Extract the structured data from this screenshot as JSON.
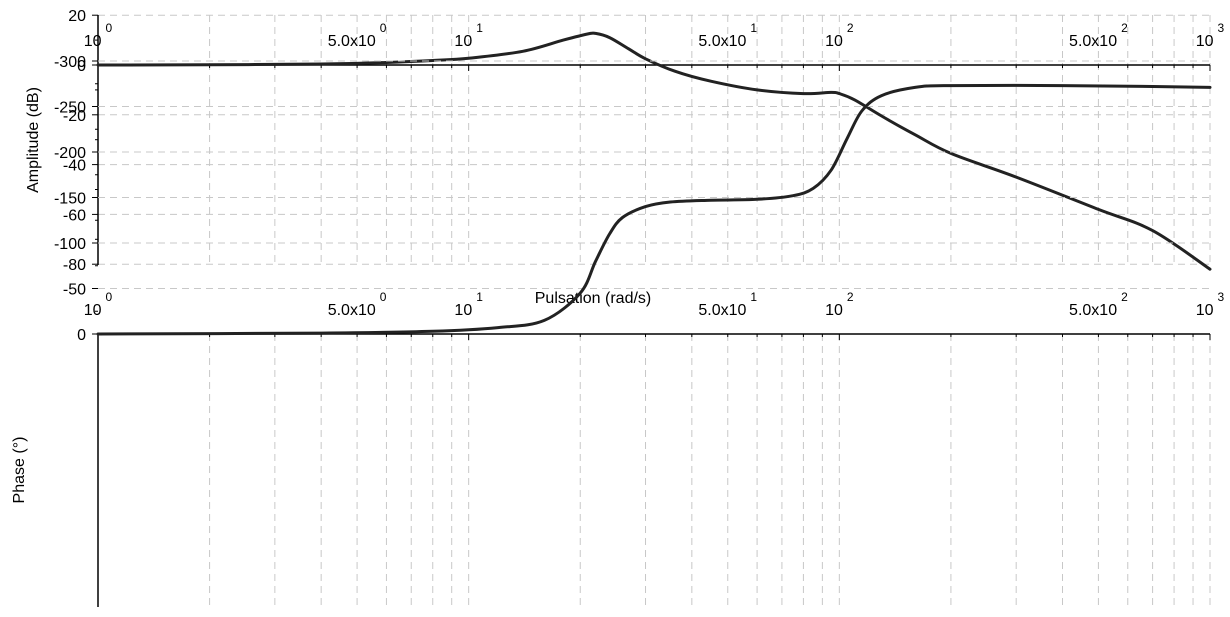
{
  "chart_data": [
    {
      "type": "line",
      "scale": "log-x",
      "ylabel": "Amplitude (dB)",
      "xlabel": "Pulsation (rad/s)",
      "xlim": [
        1,
        1000
      ],
      "ylim": [
        -85,
        20
      ],
      "yticks": [
        20,
        0,
        -20,
        -40,
        -60,
        -80
      ],
      "ytick_labels": [
        "20",
        "0",
        "-20",
        "-40",
        "-60",
        "-80"
      ],
      "grid": true,
      "series": [
        {
          "x": [
            1,
            2,
            4,
            6,
            8,
            10,
            14,
            18,
            21,
            22,
            24,
            27,
            30,
            36,
            45,
            60,
            80,
            95,
            100,
            110,
            130,
            160,
            200,
            300,
            500,
            700,
            1000
          ],
          "values": [
            0,
            0.1,
            0.4,
            1.0,
            1.8,
            2.7,
            5.5,
            10.0,
            12.5,
            12.7,
            11.0,
            6.5,
            2.5,
            -2.5,
            -6.5,
            -10.0,
            -11.5,
            -11.0,
            -11.5,
            -14.0,
            -20.5,
            -28.0,
            -35.5,
            -45.0,
            -58.0,
            -66.5,
            -82.0
          ]
        }
      ]
    },
    {
      "type": "line",
      "scale": "log-x",
      "ylabel": "Phase (°)",
      "xlim": [
        1,
        1000
      ],
      "ylim": [
        -300,
        0
      ],
      "yticks": [
        0,
        -50,
        -100,
        -150,
        -200,
        -250,
        -300
      ],
      "ytick_labels": [
        "0",
        "-50",
        "-100",
        "-150",
        "-200",
        "-250",
        "-300"
      ],
      "grid": true,
      "series": [
        {
          "x": [
            1,
            4,
            8,
            12,
            16,
            20,
            22,
            24,
            26,
            30,
            35,
            45,
            60,
            75,
            85,
            95,
            105,
            115,
            130,
            160,
            200,
            400,
            700,
            1000
          ],
          "values": [
            0,
            -1,
            -3,
            -7,
            -15,
            -45,
            -80,
            -110,
            -128,
            -140,
            -145,
            -147,
            -148,
            -152,
            -160,
            -180,
            -215,
            -245,
            -262,
            -271,
            -273,
            -273,
            -272,
            -271
          ]
        }
      ]
    }
  ],
  "x_tick_labels": [
    {
      "value": 1,
      "base": "10",
      "exp": "0"
    },
    {
      "value": 5,
      "base": "5.0x10",
      "exp": "0"
    },
    {
      "value": 10,
      "base": "10",
      "exp": "1"
    },
    {
      "value": 50,
      "base": "5.0x10",
      "exp": "1"
    },
    {
      "value": 100,
      "base": "10",
      "exp": "2"
    },
    {
      "value": 500,
      "base": "5.0x10",
      "exp": "2"
    },
    {
      "value": 1000,
      "base": "10",
      "exp": "3"
    }
  ],
  "colors": {
    "line": "#222222",
    "grid": "#c8c8c8",
    "axis": "#000000"
  }
}
